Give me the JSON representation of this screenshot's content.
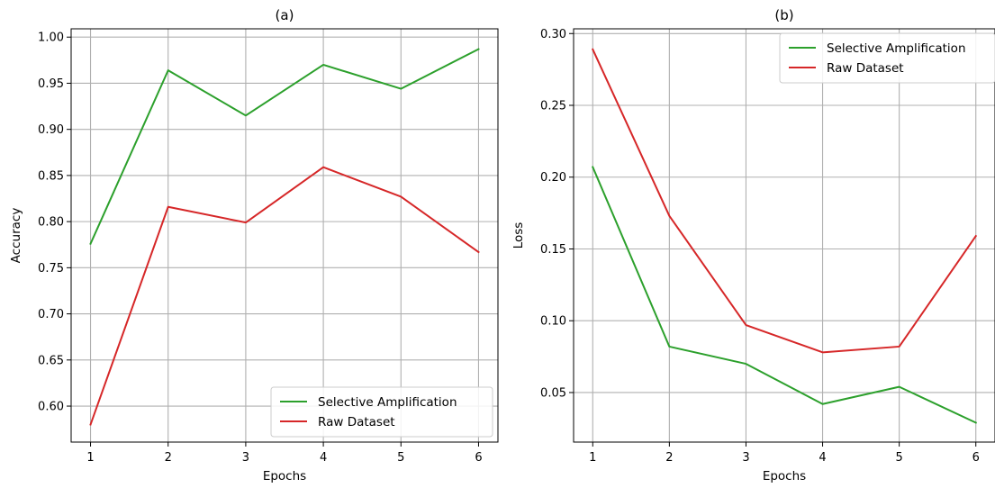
{
  "chart_data": [
    {
      "type": "line",
      "title": "(a)",
      "xlabel": "Epochs",
      "ylabel": "Accuracy",
      "x": [
        1,
        2,
        3,
        4,
        5,
        6
      ],
      "xticks": [
        "1",
        "2",
        "3",
        "4",
        "5",
        "6"
      ],
      "yticks": [
        "0.60",
        "0.65",
        "0.70",
        "0.75",
        "0.80",
        "0.85",
        "0.90",
        "0.95",
        "1.00"
      ],
      "xlim": [
        0.75,
        6.25
      ],
      "ylim": [
        0.561,
        1.009
      ],
      "grid": true,
      "legend_position": "lower-right",
      "series": [
        {
          "name": "Selective Amplification",
          "color": "#2ca02c",
          "values": [
            0.776,
            0.964,
            0.915,
            0.97,
            0.944,
            0.987
          ]
        },
        {
          "name": "Raw Dataset",
          "color": "#d62728",
          "values": [
            0.58,
            0.816,
            0.799,
            0.859,
            0.827,
            0.767
          ]
        }
      ]
    },
    {
      "type": "line",
      "title": "(b)",
      "xlabel": "Epochs",
      "ylabel": "Loss",
      "x": [
        1,
        2,
        3,
        4,
        5,
        6
      ],
      "xticks": [
        "1",
        "2",
        "3",
        "4",
        "5",
        "6"
      ],
      "yticks": [
        "0.05",
        "0.10",
        "0.15",
        "0.20",
        "0.25",
        "0.30"
      ],
      "xlim": [
        0.75,
        6.25
      ],
      "ylim": [
        0.0155,
        0.3033
      ],
      "grid": true,
      "legend_position": "upper-right",
      "series": [
        {
          "name": "Selective Amplification",
          "color": "#2ca02c",
          "values": [
            0.207,
            0.082,
            0.07,
            0.042,
            0.054,
            0.029
          ]
        },
        {
          "name": "Raw Dataset",
          "color": "#d62728",
          "values": [
            0.289,
            0.173,
            0.097,
            0.078,
            0.082,
            0.159
          ]
        }
      ]
    }
  ]
}
